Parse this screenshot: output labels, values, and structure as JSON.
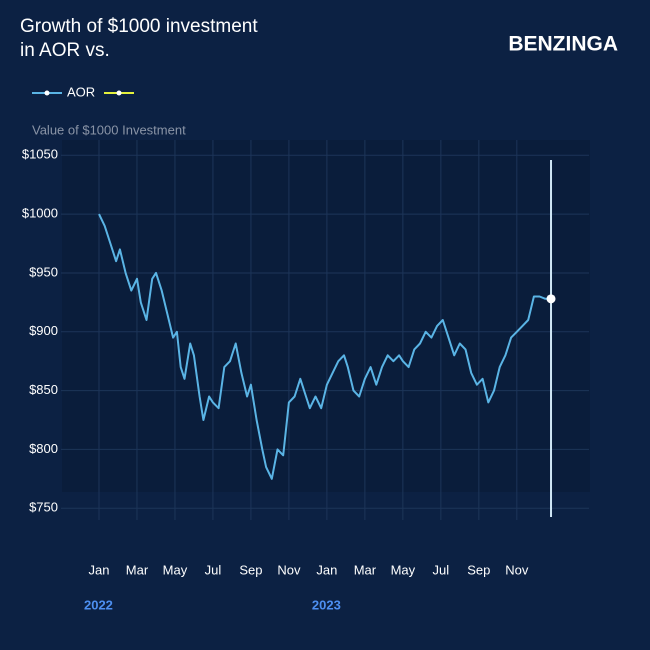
{
  "chart_data": {
    "type": "line",
    "title": "Growth of $1000 investment in AOR vs.",
    "brand": "BENZINGA",
    "y_label": "Value of $1000 Investment",
    "series": [
      {
        "name": "AOR",
        "color": "#5ab4e5",
        "x": [
          0,
          0.3,
          0.6,
          0.9,
          1.1,
          1.4,
          1.7,
          2.0,
          2.2,
          2.5,
          2.8,
          3.0,
          3.3,
          3.6,
          3.9,
          4.1,
          4.3,
          4.5,
          4.8,
          5.0,
          5.3,
          5.5,
          5.8,
          6.0,
          6.3,
          6.6,
          6.9,
          7.2,
          7.5,
          7.8,
          8.0,
          8.3,
          8.6,
          8.8,
          9.1,
          9.4,
          9.7,
          10.0,
          10.3,
          10.6,
          10.9,
          11.1,
          11.4,
          11.7,
          12.0,
          12.3,
          12.6,
          12.9,
          13.1,
          13.4,
          13.7,
          14.0,
          14.3,
          14.6,
          14.9,
          15.2,
          15.5,
          15.8,
          16.0,
          16.3,
          16.6,
          16.9,
          17.2,
          17.5,
          17.8,
          18.1,
          18.4,
          18.7,
          19.0,
          19.3,
          19.6,
          19.9,
          20.2,
          20.5,
          20.8,
          21.1,
          21.4,
          21.7,
          22.0,
          22.3,
          22.6,
          22.9,
          23.2,
          23.5,
          23.8
        ],
        "values": [
          1000,
          990,
          975,
          960,
          970,
          950,
          935,
          945,
          925,
          910,
          945,
          950,
          935,
          915,
          895,
          900,
          870,
          860,
          890,
          880,
          845,
          825,
          845,
          840,
          835,
          870,
          875,
          890,
          865,
          845,
          855,
          825,
          800,
          785,
          775,
          800,
          795,
          840,
          845,
          860,
          845,
          835,
          845,
          835,
          855,
          865,
          875,
          880,
          870,
          850,
          845,
          860,
          870,
          855,
          870,
          880,
          875,
          880,
          875,
          870,
          885,
          890,
          900,
          895,
          905,
          910,
          895,
          880,
          890,
          885,
          865,
          855,
          860,
          840,
          850,
          870,
          880,
          895,
          900,
          905,
          910,
          930,
          930,
          928,
          928
        ]
      }
    ],
    "xlim": [
      -2,
      25.8
    ],
    "xticks": [
      {
        "value": 0,
        "label": "Jan"
      },
      {
        "value": 2,
        "label": "Mar"
      },
      {
        "value": 4,
        "label": "May"
      },
      {
        "value": 6,
        "label": "Jul"
      },
      {
        "value": 8,
        "label": "Sep"
      },
      {
        "value": 10,
        "label": "Nov"
      },
      {
        "value": 12,
        "label": "Jan"
      },
      {
        "value": 14,
        "label": "Mar"
      },
      {
        "value": 16,
        "label": "May"
      },
      {
        "value": 18,
        "label": "Jul"
      },
      {
        "value": 20,
        "label": "Sep"
      },
      {
        "value": 22,
        "label": "Nov"
      }
    ],
    "year_labels": [
      {
        "value": 0,
        "label": "2022"
      },
      {
        "value": 12,
        "label": "2023"
      }
    ],
    "ylim": [
      740,
      1063
    ],
    "yticks": [
      {
        "value": 750,
        "label": "$750"
      },
      {
        "value": 800,
        "label": "$800"
      },
      {
        "value": 850,
        "label": "$850"
      },
      {
        "value": 900,
        "label": "$900"
      },
      {
        "value": 950,
        "label": "$950"
      },
      {
        "value": 1000,
        "label": "$1000"
      },
      {
        "value": 1050,
        "label": "$1050"
      }
    ],
    "grid": true
  }
}
